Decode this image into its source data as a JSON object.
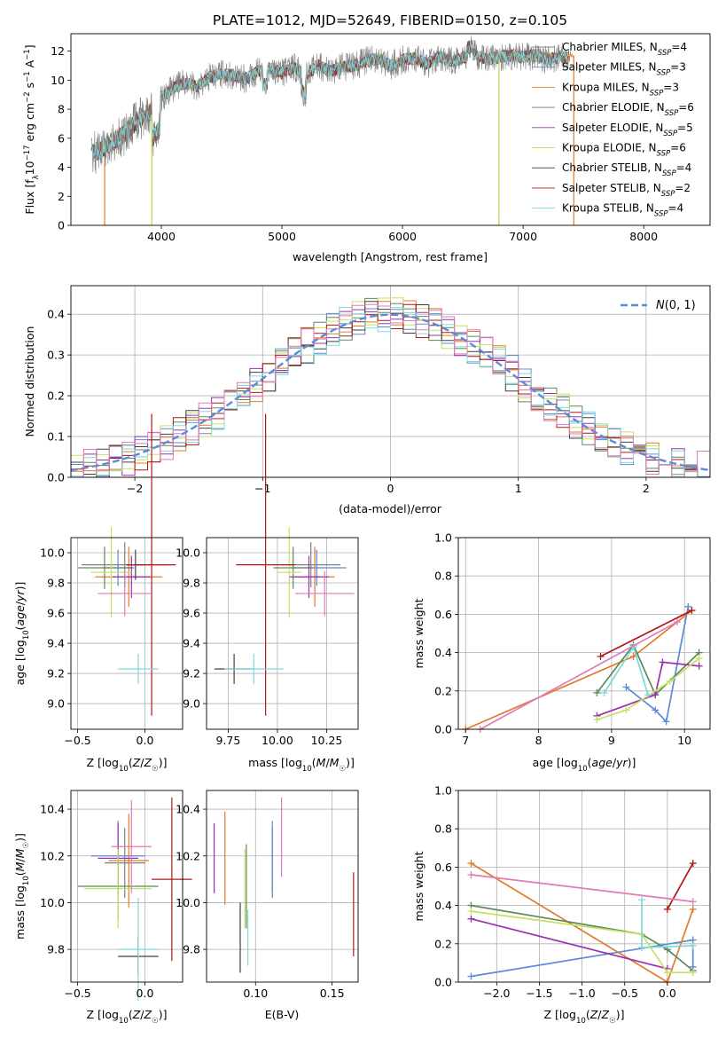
{
  "title": "PLATE=1012, MJD=52649, FIBERID=0150, z=0.105",
  "colors": {
    "chabrier_miles": "#808080",
    "salpeter_miles": "#5b8bd9",
    "kroupa_miles": "#e07b2a",
    "chabrier_elodie": "#5a8a5a",
    "salpeter_elodie": "#9b30b0",
    "kroupa_elodie": "#c8e060",
    "chabrier_stelib": "#404040",
    "salpeter_stelib": "#b01818",
    "kroupa_stelib": "#7fd8d8",
    "pink": "#e07ab8",
    "normal_dash": "#5b8bd9"
  },
  "chart_data": [
    {
      "id": "spectrum",
      "type": "line",
      "xlabel": "wavelength [Angstrom, rest frame]",
      "ylabel": "Flux [f_λ10^-17 erg cm^-2 s^-1 A^-1]",
      "xlim": [
        3250,
        8550
      ],
      "ylim": [
        0,
        13.2
      ],
      "xticks": [
        4000,
        5000,
        6000,
        7000,
        8000
      ],
      "yticks": [
        0,
        2,
        4,
        6,
        8,
        10,
        12
      ],
      "legend_position": "right",
      "legend": [
        {
          "label": "Chabrier MILES, N_SSP=4",
          "color": "chabrier_miles"
        },
        {
          "label": "Salpeter MILES, N_SSP=3",
          "color": "salpeter_miles"
        },
        {
          "label": "Kroupa MILES, N_SSP=3",
          "color": "kroupa_miles"
        },
        {
          "label": "Chabrier ELODIE, N_SSP=6",
          "color": "chabrier_elodie"
        },
        {
          "label": "Salpeter ELODIE, N_SSP=5",
          "color": "salpeter_elodie"
        },
        {
          "label": "Kroupa ELODIE, N_SSP=6",
          "color": "kroupa_elodie"
        },
        {
          "label": "Chabrier STELIB, N_SSP=4",
          "color": "chabrier_stelib"
        },
        {
          "label": "Salpeter STELIB, N_SSP=2",
          "color": "salpeter_stelib"
        },
        {
          "label": "Kroupa STELIB, N_SSP=4",
          "color": "kroupa_stelib"
        }
      ],
      "x": [
        3420,
        3500,
        3600,
        3700,
        3800,
        3900,
        4000,
        4100,
        4200,
        4300,
        4400,
        4500,
        4600,
        4700,
        4800,
        4900,
        5000,
        5100,
        5200,
        5300,
        5400,
        5500,
        5600,
        5700,
        5800,
        5900,
        6000,
        6100,
        6200,
        6300,
        6400,
        6500,
        6600,
        6700,
        6800,
        6900,
        7000,
        7100,
        7200,
        7300,
        7400
      ],
      "y": [
        4.9,
        5.2,
        5.8,
        6.3,
        7.2,
        7.8,
        8.8,
        9.5,
        9.8,
        9.6,
        10.2,
        10.4,
        10.3,
        10.1,
        10.6,
        10.8,
        10.5,
        10.9,
        10.4,
        11.0,
        10.6,
        10.9,
        11.0,
        11.3,
        11.5,
        11.0,
        11.4,
        11.5,
        11.1,
        11.6,
        11.3,
        11.5,
        11.8,
        11.4,
        11.6,
        11.7,
        11.6,
        11.7,
        11.4,
        11.6,
        11.7
      ],
      "notes_drops": [
        3530,
        3920,
        6800,
        7420
      ]
    },
    {
      "id": "residuals",
      "type": "histogram",
      "xlabel": "(data-model)/error",
      "ylabel": "Normed distribution",
      "xlim": [
        -2.5,
        2.5
      ],
      "ylim": [
        0,
        0.47
      ],
      "xticks": [
        -2,
        -1,
        0,
        1,
        2
      ],
      "yticks": [
        0.0,
        0.1,
        0.2,
        0.3,
        0.4
      ],
      "legend_position": "top-right",
      "legend_label": "N(0,1)",
      "bin_width": 0.1,
      "grid": true
    },
    {
      "id": "age_vs_Z",
      "type": "errorbar",
      "xlabel": "Z [log10(Z/Z☉)]",
      "ylabel": "age  [log10(age/yr)]",
      "xlim": [
        -0.55,
        0.28
      ],
      "ylim": [
        8.83,
        10.1
      ],
      "xticks": [
        -0.5,
        0.0
      ],
      "yticks": [
        9.0,
        9.2,
        9.4,
        9.6,
        9.8,
        10.0
      ],
      "points": [
        {
          "x": -0.15,
          "y": 9.92,
          "xerr": 0.32,
          "yerr": 0.15,
          "color": "chabrier_miles"
        },
        {
          "x": -0.2,
          "y": 9.9,
          "xerr": 0.12,
          "yerr": 0.12,
          "color": "salpeter_miles"
        },
        {
          "x": -0.12,
          "y": 9.84,
          "xerr": 0.25,
          "yerr": 0.2,
          "color": "kroupa_miles"
        },
        {
          "x": -0.3,
          "y": 9.9,
          "xerr": 0.2,
          "yerr": 0.14,
          "color": "chabrier_elodie"
        },
        {
          "x": -0.1,
          "y": 9.84,
          "xerr": 0.14,
          "yerr": 0.14,
          "color": "salpeter_elodie"
        },
        {
          "x": -0.25,
          "y": 9.87,
          "xerr": 0.15,
          "yerr": 0.3,
          "color": "kroupa_elodie"
        },
        {
          "x": -0.07,
          "y": 9.92,
          "xerr": 0.07,
          "yerr": 0.1,
          "color": "chabrier_stelib"
        },
        {
          "x": 0.05,
          "y": 9.92,
          "xerr": 0.18,
          "yerr": 1.0,
          "color": "salpeter_stelib"
        },
        {
          "x": -0.05,
          "y": 9.23,
          "xerr": 0.15,
          "yerr": 0.1,
          "color": "kroupa_stelib"
        },
        {
          "x": -0.15,
          "y": 9.73,
          "xerr": 0.2,
          "yerr": 0.15,
          "color": "pink"
        }
      ]
    },
    {
      "id": "age_vs_mass",
      "type": "errorbar",
      "xlabel": "mass [log10(M/M☉)]",
      "ylabel": "",
      "xlim": [
        9.64,
        10.41
      ],
      "ylim": [
        8.83,
        10.1
      ],
      "xticks": [
        9.75,
        10.0,
        10.25
      ],
      "yticks": [
        9.0,
        9.2,
        9.4,
        9.6,
        9.8,
        10.0
      ],
      "points": [
        {
          "x": 10.17,
          "y": 9.92,
          "xerr": 0.15,
          "yerr": 0.15,
          "color": "chabrier_miles"
        },
        {
          "x": 10.2,
          "y": 9.9,
          "xerr": 0.15,
          "yerr": 0.12,
          "color": "salpeter_miles"
        },
        {
          "x": 10.19,
          "y": 9.84,
          "xerr": 0.1,
          "yerr": 0.2,
          "color": "kroupa_miles"
        },
        {
          "x": 10.08,
          "y": 9.9,
          "xerr": 0.1,
          "yerr": 0.14,
          "color": "chabrier_elodie"
        },
        {
          "x": 10.16,
          "y": 9.84,
          "xerr": 0.1,
          "yerr": 0.14,
          "color": "salpeter_elodie"
        },
        {
          "x": 10.06,
          "y": 9.87,
          "xerr": 0.06,
          "yerr": 0.3,
          "color": "kroupa_elodie"
        },
        {
          "x": 9.78,
          "y": 9.23,
          "xerr": 0.1,
          "yerr": 0.1,
          "color": "chabrier_stelib"
        },
        {
          "x": 9.94,
          "y": 9.92,
          "xerr": 0.15,
          "yerr": 1.0,
          "color": "salpeter_stelib"
        },
        {
          "x": 9.88,
          "y": 9.23,
          "xerr": 0.15,
          "yerr": 0.1,
          "color": "kroupa_stelib"
        },
        {
          "x": 10.24,
          "y": 9.73,
          "xerr": 0.15,
          "yerr": 0.15,
          "color": "pink"
        }
      ]
    },
    {
      "id": "weight_vs_age",
      "type": "line",
      "xlabel": "age  [log10(age/yr)]",
      "ylabel": "mass weight",
      "xlim": [
        6.9,
        10.35
      ],
      "ylim": [
        0,
        1
      ],
      "xticks": [
        7,
        8,
        9,
        10
      ],
      "yticks": [
        0.0,
        0.2,
        0.4,
        0.6,
        0.8,
        1.0
      ],
      "series": [
        {
          "color": "salpeter_miles",
          "x": [
            9.2,
            9.6,
            9.75,
            10.05
          ],
          "y": [
            0.22,
            0.1,
            0.04,
            0.64
          ]
        },
        {
          "color": "kroupa_miles",
          "x": [
            7.0,
            9.3,
            10.1
          ],
          "y": [
            0.0,
            0.38,
            0.62
          ]
        },
        {
          "color": "chabrier_elodie",
          "x": [
            8.8,
            9.3,
            9.6,
            10.2
          ],
          "y": [
            0.19,
            0.44,
            0.18,
            0.4
          ]
        },
        {
          "color": "salpeter_elodie",
          "x": [
            8.8,
            9.6,
            9.7,
            10.2
          ],
          "y": [
            0.07,
            0.18,
            0.35,
            0.33
          ]
        },
        {
          "color": "kroupa_elodie",
          "x": [
            8.8,
            9.2,
            9.8,
            10.2
          ],
          "y": [
            0.05,
            0.1,
            0.25,
            0.37
          ]
        },
        {
          "color": "salpeter_stelib",
          "x": [
            8.85,
            10.1
          ],
          "y": [
            0.38,
            0.62
          ]
        },
        {
          "color": "kroupa_stelib",
          "x": [
            8.9,
            9.3,
            9.5
          ],
          "y": [
            0.19,
            0.43,
            0.18
          ]
        },
        {
          "color": "pink",
          "x": [
            7.2,
            9.9
          ],
          "y": [
            0.0,
            0.56
          ]
        }
      ]
    },
    {
      "id": "mass_vs_Z",
      "type": "errorbar",
      "xlabel": "Z [log10(Z/Z☉)]",
      "ylabel": "mass [log10(M/M☉)]",
      "xlim": [
        -0.55,
        0.28
      ],
      "ylim": [
        9.66,
        10.48
      ],
      "xticks": [
        -0.5,
        0.0
      ],
      "yticks": [
        9.8,
        10.0,
        10.2,
        10.4
      ],
      "points": [
        {
          "x": -0.15,
          "y": 10.17,
          "xerr": 0.15,
          "yerr": 0.15,
          "color": "chabrier_miles"
        },
        {
          "x": -0.2,
          "y": 10.2,
          "xerr": 0.2,
          "yerr": 0.15,
          "color": "salpeter_miles"
        },
        {
          "x": -0.12,
          "y": 10.18,
          "xerr": 0.15,
          "yerr": 0.2,
          "color": "kroupa_miles"
        },
        {
          "x": -0.2,
          "y": 10.07,
          "xerr": 0.3,
          "yerr": 0.14,
          "color": "chabrier_elodie"
        },
        {
          "x": -0.2,
          "y": 10.19,
          "xerr": 0.15,
          "yerr": 0.15,
          "color": "salpeter_elodie"
        },
        {
          "x": -0.2,
          "y": 10.06,
          "xerr": 0.25,
          "yerr": 0.17,
          "color": "kroupa_elodie"
        },
        {
          "x": -0.05,
          "y": 9.77,
          "xerr": 0.15,
          "yerr": 0.08,
          "color": "chabrier_stelib"
        },
        {
          "x": 0.2,
          "y": 10.1,
          "xerr": 0.15,
          "yerr": 0.35,
          "color": "salpeter_stelib"
        },
        {
          "x": -0.05,
          "y": 9.8,
          "xerr": 0.15,
          "yerr": 0.22,
          "color": "kroupa_stelib"
        },
        {
          "x": -0.1,
          "y": 10.24,
          "xerr": 0.15,
          "yerr": 0.2,
          "color": "pink"
        }
      ]
    },
    {
      "id": "mass_vs_EBV",
      "type": "errorbar",
      "xlabel": "E(B-V)",
      "ylabel": "",
      "xlim": [
        0.068,
        0.167
      ],
      "ylim": [
        9.66,
        10.48
      ],
      "xticks": [
        0.1,
        0.15
      ],
      "yticks": [
        9.8,
        10.0,
        10.2,
        10.4
      ],
      "points": [
        {
          "x": 0.111,
          "y": 10.17,
          "xerr": 0,
          "yerr": 0.15,
          "color": "chabrier_miles"
        },
        {
          "x": 0.111,
          "y": 10.2,
          "xerr": 0,
          "yerr": 0.15,
          "color": "salpeter_miles"
        },
        {
          "x": 0.08,
          "y": 10.19,
          "xerr": 0,
          "yerr": 0.2,
          "color": "kroupa_miles"
        },
        {
          "x": 0.094,
          "y": 10.07,
          "xerr": 0,
          "yerr": 0.18,
          "color": "chabrier_elodie"
        },
        {
          "x": 0.073,
          "y": 10.19,
          "xerr": 0,
          "yerr": 0.15,
          "color": "salpeter_elodie"
        },
        {
          "x": 0.093,
          "y": 10.06,
          "xerr": 0,
          "yerr": 0.17,
          "color": "kroupa_elodie"
        },
        {
          "x": 0.09,
          "y": 9.85,
          "xerr": 0,
          "yerr": 0.15,
          "color": "chabrier_stelib"
        },
        {
          "x": 0.164,
          "y": 9.95,
          "xerr": 0,
          "yerr": 0.18,
          "color": "salpeter_stelib"
        },
        {
          "x": 0.095,
          "y": 9.85,
          "xerr": 0,
          "yerr": 0.12,
          "color": "kroupa_stelib"
        },
        {
          "x": 0.117,
          "y": 10.28,
          "xerr": 0,
          "yerr": 0.17,
          "color": "pink"
        }
      ]
    },
    {
      "id": "weight_vs_Z",
      "type": "line",
      "xlabel": "Z [log10(Z/Z☉)]",
      "ylabel": "mass weight",
      "xlim": [
        -2.45,
        0.5
      ],
      "ylim": [
        0,
        1
      ],
      "xticks": [
        -2.0,
        -1.5,
        -1.0,
        -0.5,
        0.0
      ],
      "yticks": [
        0.0,
        0.2,
        0.4,
        0.6,
        0.8,
        1.0
      ],
      "series": [
        {
          "color": "salpeter_miles",
          "x": [
            -2.3,
            0.3,
            0.3
          ],
          "y": [
            0.03,
            0.22,
            0.08
          ]
        },
        {
          "color": "kroupa_miles",
          "x": [
            -2.3,
            0.0,
            0.3
          ],
          "y": [
            0.62,
            0.0,
            0.38
          ]
        },
        {
          "color": "chabrier_elodie",
          "x": [
            -2.3,
            -0.3,
            0.0,
            0.3
          ],
          "y": [
            0.4,
            0.25,
            0.17,
            0.06
          ]
        },
        {
          "color": "salpeter_elodie",
          "x": [
            -2.3,
            0.0
          ],
          "y": [
            0.33,
            0.07
          ]
        },
        {
          "color": "kroupa_elodie",
          "x": [
            -2.3,
            -0.3,
            0.0,
            0.3
          ],
          "y": [
            0.37,
            0.25,
            0.05,
            0.05
          ]
        },
        {
          "color": "salpeter_stelib",
          "x": [
            0.0,
            0.3
          ],
          "y": [
            0.38,
            0.62
          ]
        },
        {
          "color": "kroupa_stelib",
          "x": [
            -0.3,
            -0.3,
            0.3
          ],
          "y": [
            0.43,
            0.18,
            0.19
          ]
        },
        {
          "color": "pink",
          "x": [
            -2.3,
            0.3
          ],
          "y": [
            0.56,
            0.42
          ]
        }
      ]
    }
  ]
}
